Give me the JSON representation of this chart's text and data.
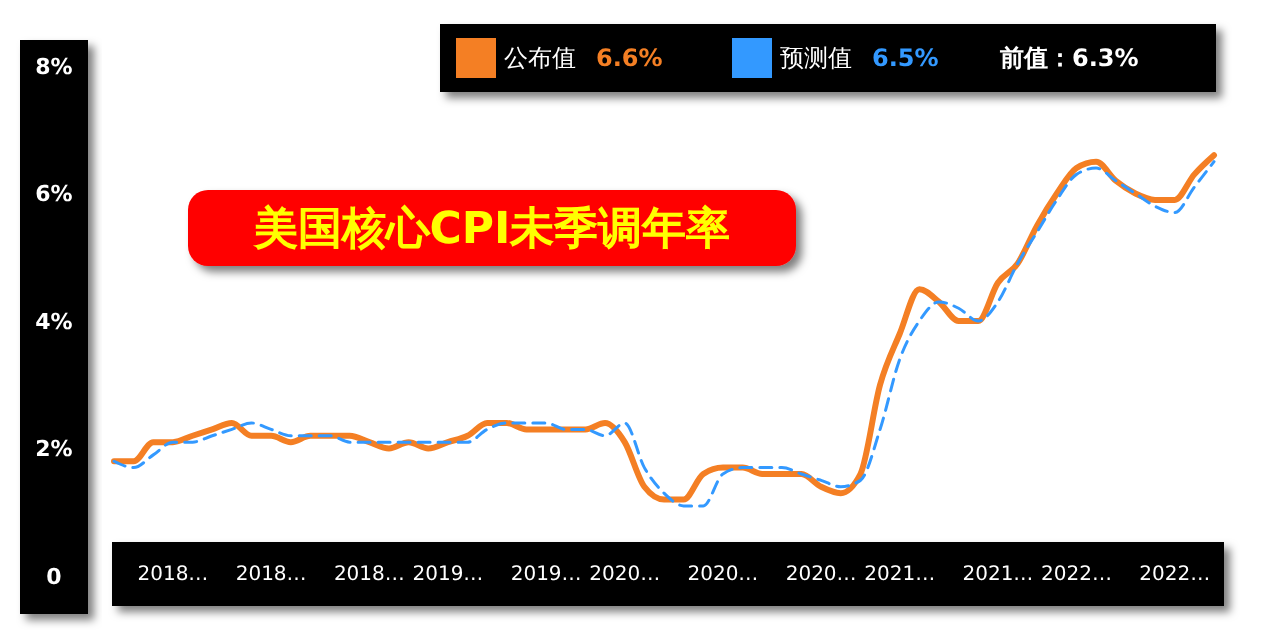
{
  "chart_data": {
    "type": "line",
    "title": "美国核心CPI未季调年率",
    "categories": [
      null,
      null,
      null,
      "2018…",
      null,
      null,
      null,
      null,
      "2018…",
      null,
      null,
      null,
      null,
      "2018…",
      null,
      null,
      null,
      "2019…",
      null,
      null,
      null,
      null,
      "2019…",
      null,
      null,
      null,
      "2020…",
      null,
      null,
      null,
      null,
      "2020…",
      null,
      null,
      null,
      null,
      "2020…",
      null,
      null,
      null,
      "2021…",
      null,
      null,
      null,
      null,
      "2021…",
      null,
      null,
      null,
      "2022…",
      null,
      null,
      null,
      null,
      "2022…",
      null,
      null
    ],
    "series": [
      {
        "name": "公布值",
        "color": "#f47f24",
        "line_style": "solid",
        "values": [
          1.8,
          1.8,
          2.1,
          2.1,
          2.2,
          2.3,
          2.4,
          2.2,
          2.2,
          2.1,
          2.2,
          2.2,
          2.2,
          2.1,
          2.0,
          2.1,
          2.0,
          2.1,
          2.2,
          2.4,
          2.4,
          2.3,
          2.3,
          2.3,
          2.3,
          2.4,
          2.1,
          1.4,
          1.2,
          1.2,
          1.6,
          1.7,
          1.7,
          1.6,
          1.6,
          1.6,
          1.4,
          1.3,
          1.6,
          3.0,
          3.8,
          4.5,
          4.3,
          4.0,
          4.0,
          4.6,
          4.9,
          5.5,
          6.0,
          6.4,
          6.5,
          6.2,
          6.0,
          5.9,
          5.9,
          6.3,
          6.6
        ]
      },
      {
        "name": "预测值",
        "color": "#3399ff",
        "line_style": "dashed",
        "values": [
          1.8,
          1.7,
          1.9,
          2.1,
          2.1,
          2.2,
          2.3,
          2.4,
          2.3,
          2.2,
          2.2,
          2.2,
          2.1,
          2.1,
          2.1,
          2.1,
          2.1,
          2.1,
          2.1,
          2.3,
          2.4,
          2.4,
          2.4,
          2.3,
          2.3,
          2.2,
          2.4,
          1.7,
          1.3,
          1.1,
          1.1,
          1.6,
          1.7,
          1.7,
          1.7,
          1.6,
          1.5,
          1.4,
          1.5,
          2.3,
          3.4,
          4.0,
          4.3,
          4.2,
          4.0,
          4.3,
          4.9,
          5.4,
          5.9,
          6.3,
          6.4,
          6.2,
          6.0,
          5.8,
          5.7,
          6.1,
          6.5
        ]
      }
    ],
    "annotations": [
      "6.6%",
      "6.5%",
      "前值：6.3%"
    ],
    "ylim": [
      0,
      8
    ],
    "yticks": [
      0,
      {
        "value": 2,
        "label": "2%"
      },
      {
        "value": 4,
        "label": "4%"
      },
      {
        "value": 6,
        "label": "6%"
      },
      {
        "value": 8,
        "label": "8%"
      }
    ],
    "legend": "top",
    "grid": false,
    "marker": "none"
  }
}
